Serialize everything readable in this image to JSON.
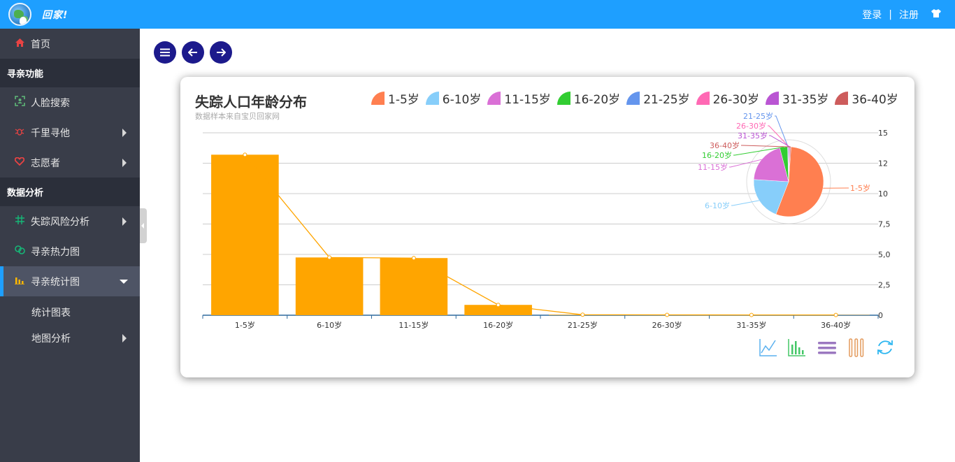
{
  "header": {
    "brand": "回家!",
    "login": "登录",
    "divider": "|",
    "register": "注册",
    "shirt_icon": "shirt-icon"
  },
  "sidebar": {
    "home": "首页",
    "section_search": "寻亲功能",
    "face_search": "人脸搜索",
    "qianli": "千里寻他",
    "volunteer": "志愿者",
    "section_analysis": "数据分析",
    "risk": "失踪风险分析",
    "heatmap": "寻亲热力图",
    "stats": "寻亲统计图",
    "sub_chart": "统计图表",
    "sub_map": "地图分析"
  },
  "chart_data": {
    "type": "bar",
    "title": "失踪人口年龄分布",
    "subtitle": "数据样本来自宝贝回家网",
    "categories": [
      "1-5岁",
      "6-10岁",
      "11-15岁",
      "16-20岁",
      "21-25岁",
      "26-30岁",
      "31-35岁",
      "36-40岁"
    ],
    "values": [
      13200,
      4750,
      4700,
      850,
      40,
      30,
      20,
      20
    ],
    "ylim": [
      0,
      15000
    ],
    "yticks": [
      "0",
      "2,5",
      "5,0",
      "7,5",
      "10",
      "12",
      "15"
    ],
    "bar_color": "#ffa500",
    "pie": {
      "labels": [
        "1-5岁",
        "6-10岁",
        "11-15岁",
        "16-20岁",
        "21-25岁",
        "26-30岁",
        "31-35岁",
        "36-40岁"
      ],
      "colors": [
        "#ff7f50",
        "#87cefa",
        "#da70d6",
        "#32cd32",
        "#6495ed",
        "#ff69b4",
        "#ba55d3",
        "#cd5c5c"
      ]
    },
    "toolbox": [
      "line-chart-icon",
      "bar-chart-icon",
      "stack-icon",
      "tiled-icon",
      "refresh-icon"
    ]
  }
}
